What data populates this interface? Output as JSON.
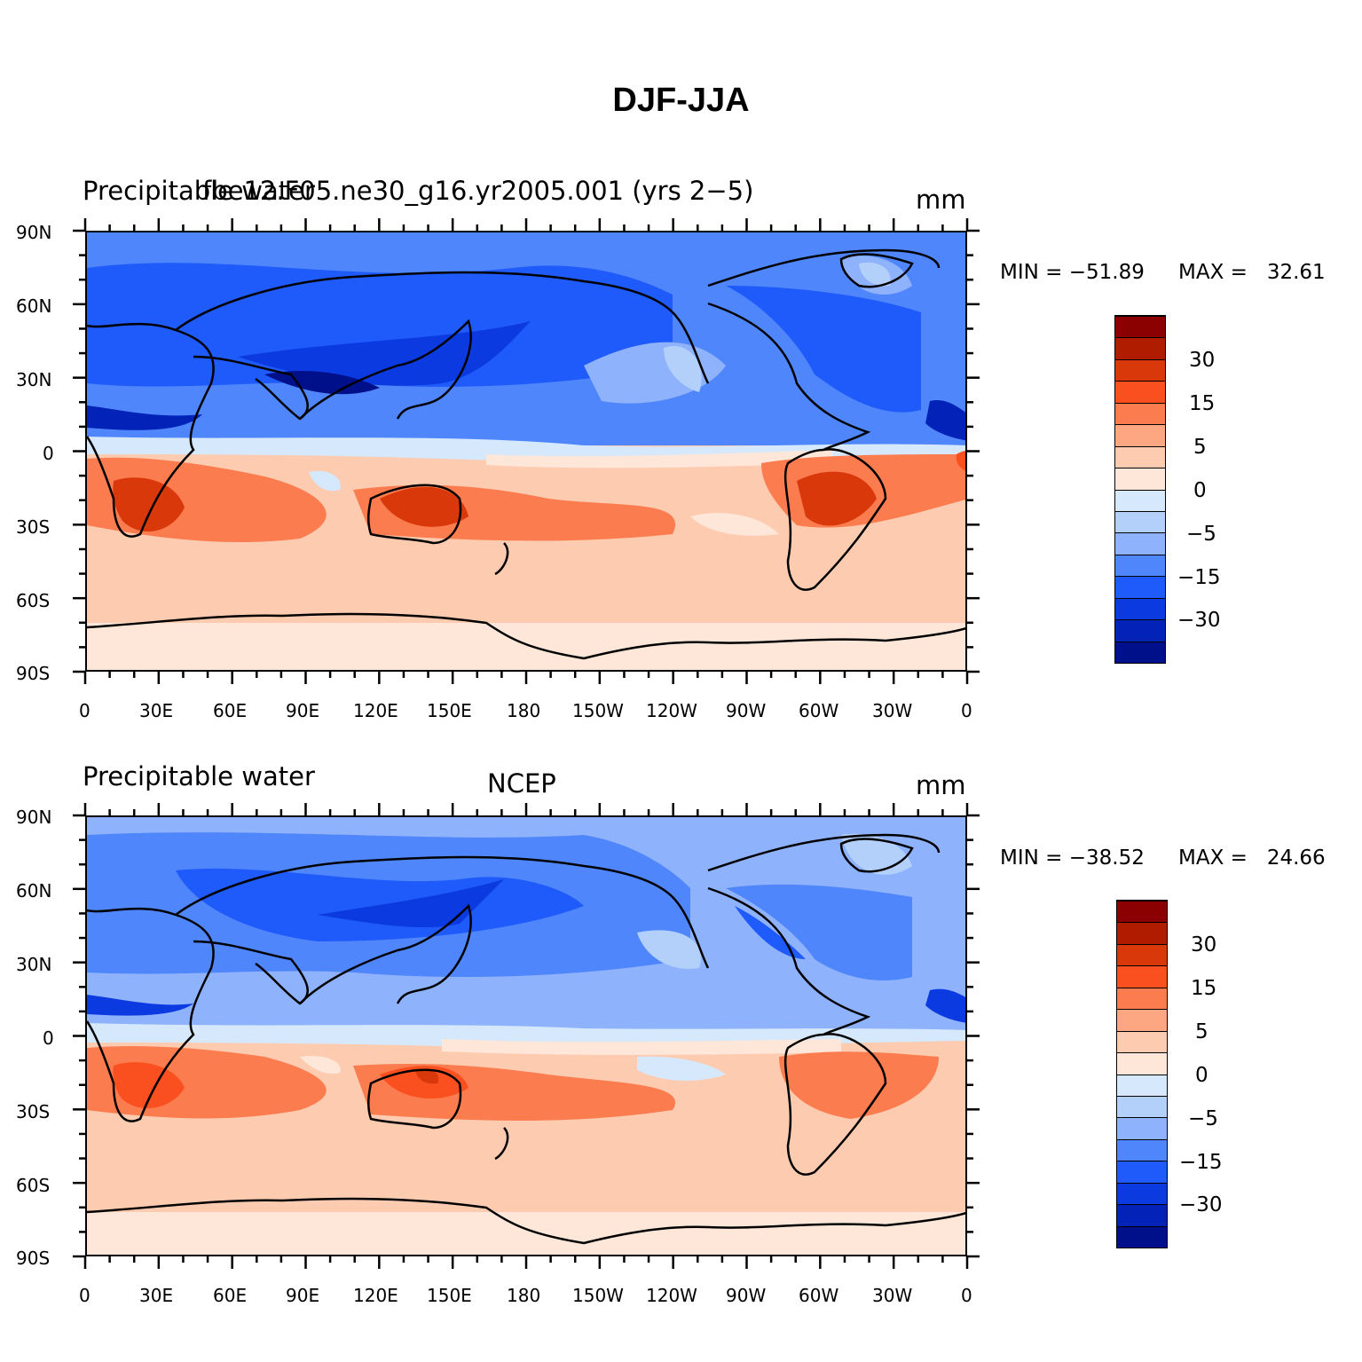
{
  "figure": {
    "title": "DJF-JJA"
  },
  "panels": [
    {
      "left_label": "Precipitable water",
      "center_label": "fbe12.F05.ne30_g16.yr2005.001 (yrs 2−5)",
      "right_label": "mm",
      "min_label": "MIN = −51.89",
      "max_label": "MAX =   32.61",
      "min": -51.89,
      "max": 32.61
    },
    {
      "left_label": "Precipitable water",
      "center_label": "NCEP",
      "right_label": "mm",
      "min_label": "MIN = −38.52",
      "max_label": "MAX =   24.66",
      "min": -38.52,
      "max": 24.66
    }
  ],
  "map_axes": {
    "lat_ticks": [
      "90N",
      "60N",
      "30N",
      "0",
      "30S",
      "60S",
      "90S"
    ],
    "lon_ticks": [
      "0",
      "30E",
      "60E",
      "90E",
      "120E",
      "150E",
      "180",
      "150W",
      "120W",
      "90W",
      "60W",
      "30W",
      "0"
    ]
  },
  "colorbar": {
    "colors": [
      "#8b0000",
      "#b01c00",
      "#d8380a",
      "#fa5020",
      "#fb7c4f",
      "#fca782",
      "#fdcbb0",
      "#fee6d8",
      "#d6e8fb",
      "#b3d0fb",
      "#8eb2fb",
      "#4f86fb",
      "#1f5afb",
      "#0a3ae0",
      "#0322b8",
      "#00108a"
    ],
    "labels": [
      "30",
      "15",
      "5",
      "0",
      "−5",
      "−15",
      "−30"
    ]
  }
}
